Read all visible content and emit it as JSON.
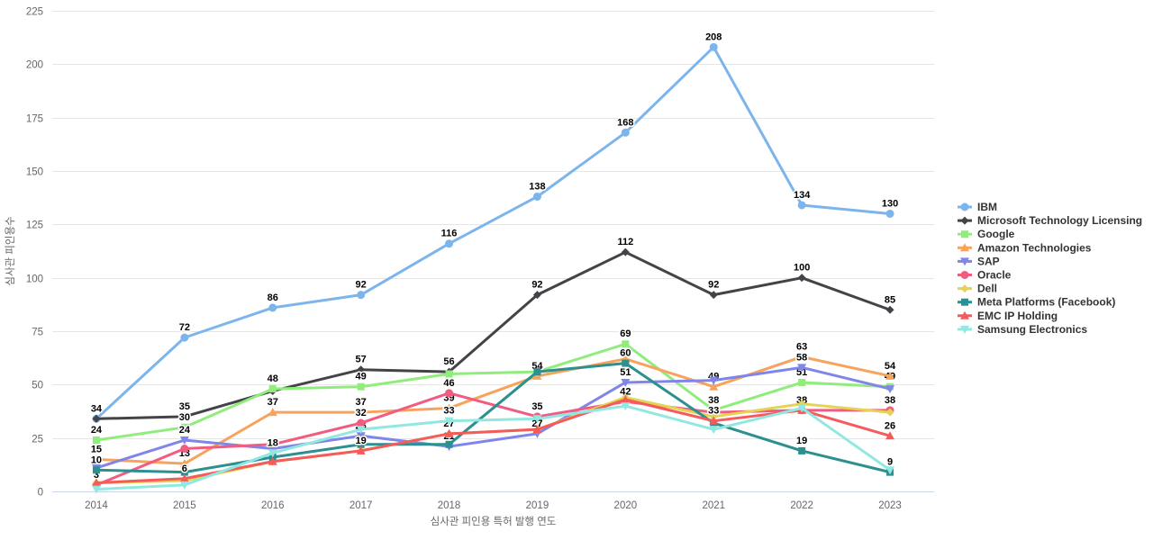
{
  "chart_data": {
    "type": "line",
    "title": "",
    "xlabel": "심사관 피인용 특허 발행 연도",
    "ylabel": "심사관 피인용수",
    "ylim": [
      0,
      225
    ],
    "yticks": [
      0,
      25,
      50,
      75,
      100,
      125,
      150,
      175,
      200,
      225
    ],
    "grid": true,
    "legend_position": "right",
    "categories": [
      "2014",
      "2015",
      "2016",
      "2017",
      "2018",
      "2019",
      "2020",
      "2021",
      "2022",
      "2023"
    ],
    "series": [
      {
        "name": "IBM",
        "color": "#7cb5ec",
        "marker": "circle",
        "values": [
          34,
          72,
          86,
          92,
          116,
          138,
          168,
          208,
          134,
          130
        ],
        "labeled": [
          true,
          true,
          true,
          true,
          true,
          true,
          true,
          true,
          true,
          true
        ]
      },
      {
        "name": "Microsoft Technology Licensing",
        "color": "#434348",
        "marker": "diamond",
        "values": [
          34,
          35,
          47,
          57,
          56,
          92,
          112,
          92,
          100,
          85
        ],
        "labeled": [
          false,
          true,
          false,
          true,
          true,
          true,
          true,
          true,
          true,
          true
        ]
      },
      {
        "name": "Google",
        "color": "#90ed7d",
        "marker": "square",
        "values": [
          24,
          30,
          48,
          49,
          55,
          56,
          69,
          38,
          51,
          49
        ],
        "labeled": [
          true,
          true,
          true,
          true,
          false,
          false,
          true,
          true,
          true,
          true
        ]
      },
      {
        "name": "Amazon Technologies",
        "color": "#f7a35c",
        "marker": "triangle",
        "values": [
          15,
          13,
          37,
          37,
          39,
          54,
          62,
          49,
          63,
          54
        ],
        "labeled": [
          true,
          true,
          true,
          true,
          true,
          true,
          false,
          true,
          true,
          true
        ]
      },
      {
        "name": "SAP",
        "color": "#8085e9",
        "marker": "triangle-down",
        "values": [
          11,
          24,
          20,
          26,
          21,
          27,
          51,
          52,
          58,
          48
        ],
        "labeled": [
          false,
          true,
          false,
          true,
          true,
          true,
          true,
          false,
          true,
          false
        ]
      },
      {
        "name": "Oracle",
        "color": "#f15c80",
        "marker": "circle",
        "values": [
          3,
          20,
          22,
          32,
          46,
          35,
          42,
          37,
          38,
          38
        ],
        "labeled": [
          true,
          false,
          false,
          true,
          true,
          true,
          true,
          false,
          true,
          true
        ]
      },
      {
        "name": "Dell",
        "color": "#e4d354",
        "marker": "diamond",
        "values": [
          4,
          5,
          14,
          19,
          27,
          29,
          44,
          35,
          41,
          37
        ],
        "labeled": [
          false,
          false,
          false,
          false,
          false,
          false,
          false,
          false,
          false,
          false
        ]
      },
      {
        "name": "Meta Platforms (Facebook)",
        "color": "#2b908f",
        "marker": "square",
        "values": [
          10,
          9,
          16,
          22,
          22,
          56,
          60,
          32,
          19,
          9
        ],
        "labeled": [
          true,
          false,
          false,
          false,
          false,
          false,
          true,
          false,
          true,
          true
        ]
      },
      {
        "name": "EMC IP Holding",
        "color": "#f45b5b",
        "marker": "triangle",
        "values": [
          4,
          6,
          14,
          19,
          27,
          29,
          43,
          33,
          38,
          26
        ],
        "labeled": [
          false,
          true,
          false,
          true,
          true,
          false,
          false,
          true,
          false,
          true
        ]
      },
      {
        "name": "Samsung Electronics",
        "color": "#91e8e1",
        "marker": "triangle-down",
        "values": [
          1,
          3,
          18,
          29,
          33,
          34,
          40,
          29,
          39,
          10
        ],
        "labeled": [
          false,
          false,
          true,
          false,
          true,
          false,
          false,
          false,
          false,
          false
        ]
      }
    ],
    "styles": {
      "grid_color": "#e6e6e6",
      "axis_line_color": "#ccd6eb",
      "tick_label_color": "#666666",
      "axis_title_color": "#666666",
      "legend_text_color": "#333333",
      "data_label_color": "#000000"
    }
  }
}
